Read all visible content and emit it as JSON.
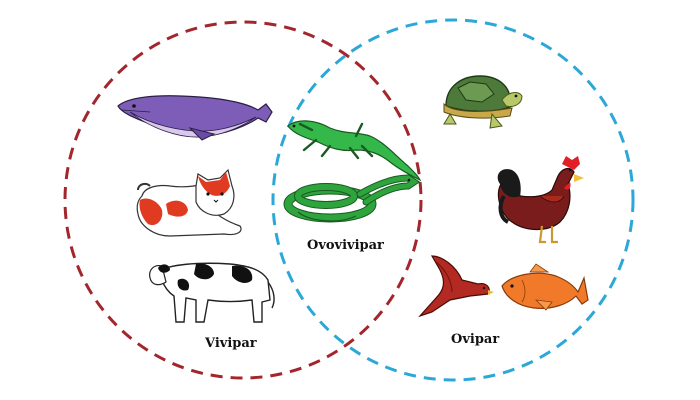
{
  "labels": {
    "viviparous": "Vivipar",
    "ovoviviparous": "Ovovivipar",
    "oviparous": "Ovipar"
  },
  "colors": {
    "left_circle": "#a3262c",
    "right_circle": "#2ba8d8",
    "whale_body": "#7d5db8",
    "whale_belly": "#d8c8ec",
    "lizard": "#35b84a",
    "snake": "#2ea43c",
    "cat_patch": "#e03a20",
    "cow_patch": "#111111",
    "turtle_shell": "#4d7a3a",
    "turtle_skin": "#b8c868",
    "rooster_body": "#7a1c1c",
    "rooster_tail": "#1a1a1a",
    "rooster_comb": "#e21f26",
    "bird": "#b22a22",
    "fish": "#f07a2a"
  },
  "animals": {
    "viviparous": [
      "whale-icon",
      "cat-icon",
      "cow-icon"
    ],
    "ovoviviparous": [
      "lizard-icon",
      "snake-icon"
    ],
    "oviparous": [
      "turtle-icon",
      "rooster-icon",
      "bird-icon",
      "fish-icon"
    ]
  }
}
